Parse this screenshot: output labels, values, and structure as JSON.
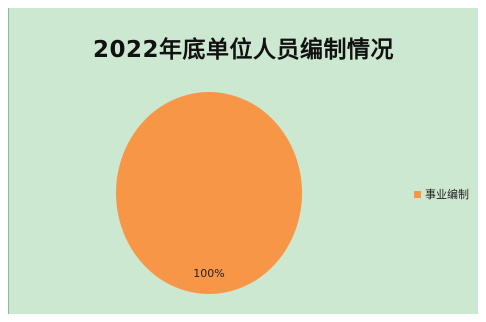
{
  "chart_data": {
    "type": "pie",
    "title": "2022年底单位人员编制情况",
    "categories": [
      "事业编制"
    ],
    "values": [
      100
    ],
    "data_labels": [
      "100%"
    ],
    "colors": [
      "#f79646"
    ],
    "legend_position": "right",
    "background": "#cde8d0"
  }
}
